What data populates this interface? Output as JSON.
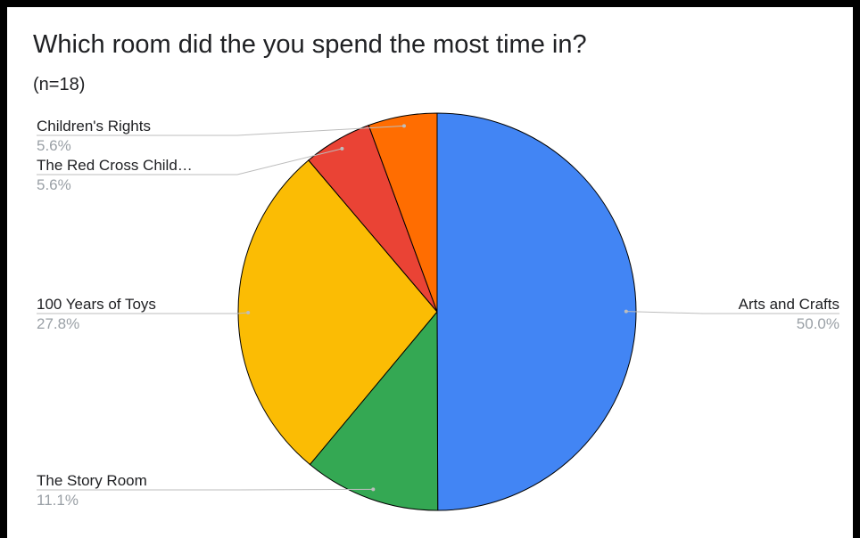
{
  "chart_data": {
    "type": "pie",
    "title": "Which room did the you spend the most time in?",
    "subtitle": "(n=18)",
    "slices": [
      {
        "label": "Arts and Crafts",
        "value": 50.0,
        "percent_label": "50.0%",
        "color": "#4285f4"
      },
      {
        "label": "The Story Room",
        "value": 11.1,
        "percent_label": "11.1%",
        "color": "#34a853"
      },
      {
        "label": "100 Years of Toys",
        "value": 27.8,
        "percent_label": "27.8%",
        "color": "#fbbc04"
      },
      {
        "label": "The Red Cross Child…",
        "value": 5.6,
        "percent_label": "5.6%",
        "color": "#ea4335"
      },
      {
        "label": "Children's Rights",
        "value": 5.6,
        "percent_label": "5.6%",
        "color": "#ff6d01"
      }
    ]
  }
}
